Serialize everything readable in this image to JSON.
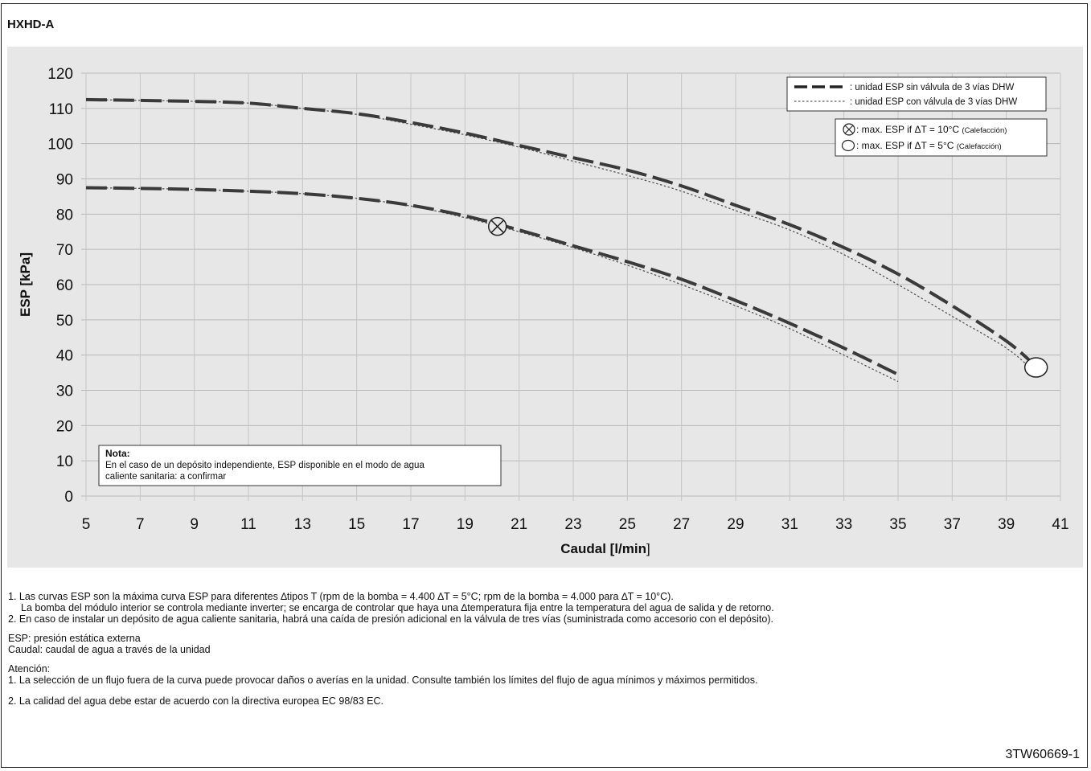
{
  "header": {
    "title": "HXHD-A"
  },
  "chart_data": {
    "type": "line",
    "title": "",
    "xlabel": "Caudal [l/min]",
    "xlabel_bold": "Caudal [l/min",
    "xlabel_close": "]",
    "ylabel": "ESP  [kPa]",
    "xlim": [
      5,
      41
    ],
    "ylim": [
      0,
      120
    ],
    "xticks": [
      5,
      7,
      9,
      11,
      13,
      15,
      17,
      19,
      21,
      23,
      25,
      27,
      29,
      31,
      33,
      35,
      37,
      39,
      41
    ],
    "yticks": [
      0,
      10,
      20,
      30,
      40,
      50,
      60,
      70,
      80,
      90,
      100,
      110,
      120
    ],
    "grid": true,
    "legend_position": "top-right",
    "series": [
      {
        "name": "unidad ESP sin válvula de 3 vías DHW",
        "style": "dashed-thick",
        "curve": "upper",
        "x": [
          5,
          9,
          11,
          13,
          15,
          17,
          19,
          21,
          23,
          25,
          27,
          29,
          31,
          33,
          35,
          37,
          39,
          40
        ],
        "y": [
          112.5,
          112,
          111.5,
          110,
          108.5,
          106,
          103,
          99.5,
          96,
          92.5,
          88,
          82.5,
          77,
          70.5,
          63,
          54,
          44,
          37.5
        ]
      },
      {
        "name": "unidad ESP con válvula de 3 vías DHW",
        "style": "dotted-thin",
        "curve": "upper",
        "x": [
          5,
          9,
          11,
          13,
          15,
          17,
          19,
          21,
          23,
          25,
          27,
          29,
          31,
          33,
          35,
          37,
          39,
          40
        ],
        "y": [
          112.5,
          112,
          111.5,
          110,
          108.3,
          105.5,
          102.5,
          99,
          95,
          91,
          86.5,
          81,
          75.5,
          68.5,
          60,
          51,
          42,
          35.5
        ]
      },
      {
        "name": "unidad ESP sin válvula de 3 vías DHW",
        "style": "dashed-thick",
        "curve": "lower",
        "x": [
          5,
          7,
          9,
          11,
          13,
          15,
          17,
          19,
          21,
          23,
          25,
          27,
          29,
          31,
          33,
          35
        ],
        "y": [
          87.5,
          87.3,
          87,
          86.5,
          85.8,
          84.5,
          82.5,
          79.5,
          75.5,
          71,
          66.5,
          61.5,
          55.5,
          49,
          42,
          34.5
        ]
      },
      {
        "name": "unidad ESP con válvula de 3 vías DHW",
        "style": "dotted-thin",
        "curve": "lower",
        "x": [
          5,
          7,
          9,
          11,
          13,
          15,
          17,
          19,
          21,
          23,
          25,
          27,
          29,
          31,
          33,
          35
        ],
        "y": [
          87.5,
          87.3,
          87,
          86.5,
          85.8,
          84.5,
          82.3,
          79,
          75,
          70.5,
          65.5,
          60,
          54,
          47.5,
          40,
          32.5
        ]
      }
    ],
    "markers": [
      {
        "label": "max. ESP if ΔT = 10°C",
        "suffix": "(Calefacción)",
        "symbol": "circle-x",
        "x": 20.2,
        "y": 76.5
      },
      {
        "label": "max. ESP if ΔT = 5°C",
        "suffix": "(Calefacción)",
        "symbol": "circle",
        "x": 40.1,
        "y": 36.5
      }
    ],
    "note": {
      "title": "Nota:",
      "line1": "En el caso de un depósito independiente, ESP disponible en el modo de agua",
      "line2": "caliente sanitaria: a confirmar"
    }
  },
  "notes": {
    "n1": "1.  Las curvas ESP son la máxima curva ESP para diferentes ∆tipos T (rpm de la bomba = 4.400 ∆T = 5°C; rpm de la bomba = 4.000 para ∆T = 10°C).",
    "n1b": "La bomba del módulo interior se controla mediante inverter; se encarga de controlar que haya una ∆temperatura fija entre la temperatura del agua de salida y de retorno.",
    "n2": "2.  En caso de instalar un depósito de agua caliente sanitaria, habrá una caída de presión adicional en la válvula de tres vías (suministrada como accesorio con el depósito).",
    "def1": "ESP: presión estática externa",
    "def2": "Caudal:  caudal de agua a través de la unidad",
    "att_title": "Atención:",
    "att1": "1.  La selección de un flujo fuera de la curva puede provocar daños o averías en la unidad.  Consulte también los límites del flujo de agua mínimos y máximos permitidos.",
    "att2": "2.  La calidad del agua debe estar de acuerdo con la directiva europea EC 98/83 EC."
  },
  "footer": {
    "doc_code": "3TW60669-1"
  }
}
